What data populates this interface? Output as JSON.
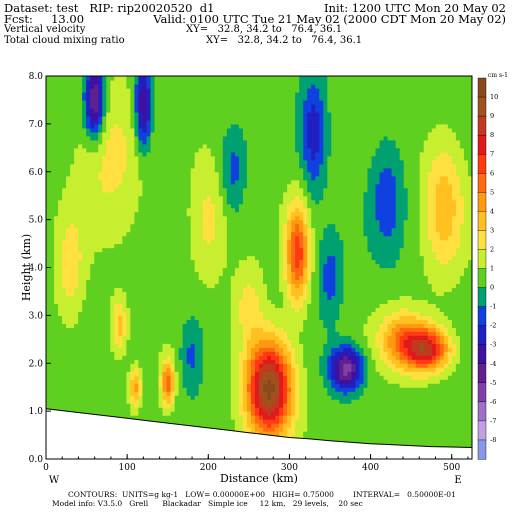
{
  "header": {
    "dataset": "Dataset: test   RIP: rip20020520  d1",
    "init": "Init: 1200 UTC Mon 20 May 02",
    "fcst": "Fcst:     13.00",
    "valid": "Valid: 0100 UTC Tue 21 May 02 (2000 CDT Mon 20 May 02)",
    "field1": "Vertical velocity",
    "xy1": "XY=   32.8, 34.2 to   76.4, 36.1",
    "field2": "Total cloud mixing ratio",
    "xy2": "XY=   32.8, 34.2 to   76.4, 36.1"
  },
  "footer": {
    "contours": "CONTOURS:  UNITS=g kg-1   LOW= 0.00000E+00   HIGH= 0.75000        INTERVAL=   0.50000E-01",
    "model": "Model info: V3.5.0   Grell      Blackadar   Simple ice     12 km,   29 levels,    20 sec"
  },
  "chart_data": {
    "type": "heatmap",
    "xlabel": "Distance (km)",
    "ylabel": "Height (km)",
    "xlim": [
      0,
      525
    ],
    "ylim": [
      0,
      8
    ],
    "x_ticks": [
      "0",
      "100",
      "200",
      "300",
      "400",
      "500"
    ],
    "x_tick_values": [
      0,
      100,
      200,
      300,
      400,
      500
    ],
    "y_ticks": [
      "0.0",
      "1.0",
      "2.0",
      "3.0",
      "4.0",
      "5.0",
      "6.0",
      "7.0",
      "8.0"
    ],
    "y_tick_values": [
      0,
      1,
      2,
      3,
      4,
      5,
      6,
      7,
      8
    ],
    "left_end_label": "W",
    "right_end_label": "E",
    "colorbar": {
      "unit_label": "cm s-1",
      "labels": [
        "10",
        "9",
        "8",
        "7",
        "6",
        "5",
        "4",
        "3",
        "2",
        "1",
        "0",
        "-1",
        "-2",
        "-3",
        "-4",
        "-5",
        "-6",
        "-7",
        "-8"
      ],
      "values": [
        10,
        9,
        8,
        7,
        6,
        5,
        4,
        3,
        2,
        1,
        0,
        -1,
        -2,
        -3,
        -4,
        -5,
        -6,
        -7,
        -8
      ],
      "colors": [
        "#8a4a1e",
        "#a0521c",
        "#c23a1e",
        "#e01a1a",
        "#ff3a10",
        "#ff6a10",
        "#ff9a10",
        "#ffc020",
        "#ffe040",
        "#c8ee30",
        "#60d020",
        "#00a070",
        "#1040e0",
        "#2020c0",
        "#4010a0",
        "#602090",
        "#8040a8",
        "#a070c8",
        "#c0a0e0",
        "#8898e8"
      ]
    },
    "terrain": [
      [
        0,
        1.05
      ],
      [
        25,
        1.0
      ],
      [
        50,
        0.95
      ],
      [
        75,
        0.9
      ],
      [
        100,
        0.85
      ],
      [
        125,
        0.8
      ],
      [
        150,
        0.75
      ],
      [
        175,
        0.7
      ],
      [
        200,
        0.65
      ],
      [
        225,
        0.6
      ],
      [
        250,
        0.55
      ],
      [
        275,
        0.5
      ],
      [
        300,
        0.45
      ],
      [
        325,
        0.42
      ],
      [
        350,
        0.38
      ],
      [
        375,
        0.35
      ],
      [
        400,
        0.32
      ],
      [
        425,
        0.3
      ],
      [
        450,
        0.28
      ],
      [
        475,
        0.26
      ],
      [
        500,
        0.25
      ],
      [
        525,
        0.24
      ]
    ],
    "cells": [
      {
        "x": 275,
        "z": 1.5,
        "rx": 28,
        "rz": 1.0,
        "peak": 10
      },
      {
        "x": 310,
        "z": 4.3,
        "rx": 14,
        "rz": 1.0,
        "peak": 6
      },
      {
        "x": 150,
        "z": 1.6,
        "rx": 8,
        "rz": 0.5,
        "peak": 5
      },
      {
        "x": 110,
        "z": 1.5,
        "rx": 7,
        "rz": 0.4,
        "peak": 4
      },
      {
        "x": 90,
        "z": 2.8,
        "rx": 10,
        "rz": 0.6,
        "peak": 3
      },
      {
        "x": 470,
        "z": 2.3,
        "rx": 28,
        "rz": 0.45,
        "peak": 7
      },
      {
        "x": 440,
        "z": 2.5,
        "rx": 30,
        "rz": 0.6,
        "peak": 4
      },
      {
        "x": 490,
        "z": 5.3,
        "rx": 25,
        "rz": 1.4,
        "peak": 3
      },
      {
        "x": 80,
        "z": 6.5,
        "rx": 40,
        "rz": 1.5,
        "peak": 2
      },
      {
        "x": 30,
        "z": 4.0,
        "rx": 18,
        "rz": 1.2,
        "peak": 2
      },
      {
        "x": 200,
        "z": 5.0,
        "rx": 25,
        "rz": 1.2,
        "peak": 2
      },
      {
        "x": 250,
        "z": 3.2,
        "rx": 18,
        "rz": 0.8,
        "peak": 2
      },
      {
        "x": 60,
        "z": 7.5,
        "rx": 12,
        "rz": 0.8,
        "peak": -6
      },
      {
        "x": 120,
        "z": 7.4,
        "rx": 10,
        "rz": 0.9,
        "peak": -5
      },
      {
        "x": 370,
        "z": 1.9,
        "rx": 20,
        "rz": 0.45,
        "peak": -6
      },
      {
        "x": 330,
        "z": 6.8,
        "rx": 15,
        "rz": 1.2,
        "peak": -3
      },
      {
        "x": 230,
        "z": 6.0,
        "rx": 15,
        "rz": 0.9,
        "peak": -2
      },
      {
        "x": 420,
        "z": 5.5,
        "rx": 20,
        "rz": 1.2,
        "peak": -2
      },
      {
        "x": 180,
        "z": 2.2,
        "rx": 15,
        "rz": 0.8,
        "peak": -2
      },
      {
        "x": 350,
        "z": 3.8,
        "rx": 15,
        "rz": 0.9,
        "peak": -2
      }
    ]
  }
}
